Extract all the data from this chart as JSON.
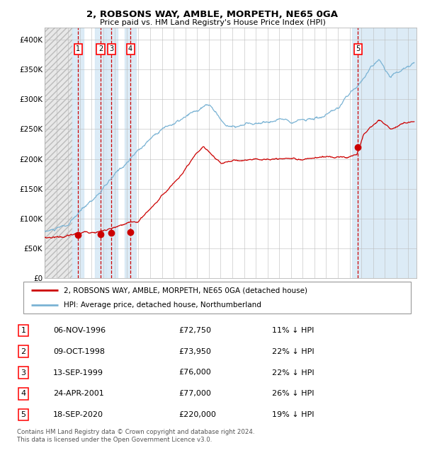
{
  "title": "2, ROBSONS WAY, AMBLE, MORPETH, NE65 0GA",
  "subtitle": "Price paid vs. HM Land Registry's House Price Index (HPI)",
  "transactions": [
    {
      "num": 1,
      "date": "06-NOV-1996",
      "price": 72750,
      "year": 1996.85
    },
    {
      "num": 2,
      "date": "09-OCT-1998",
      "price": 73950,
      "year": 1998.77
    },
    {
      "num": 3,
      "date": "13-SEP-1999",
      "price": 76000,
      "year": 1999.7
    },
    {
      "num": 4,
      "date": "24-APR-2001",
      "price": 77000,
      "year": 2001.31
    },
    {
      "num": 5,
      "date": "18-SEP-2020",
      "price": 220000,
      "year": 2020.71
    }
  ],
  "legend_line1": "2, ROBSONS WAY, AMBLE, MORPETH, NE65 0GA (detached house)",
  "legend_line2": "HPI: Average price, detached house, Northumberland",
  "table_rows": [
    {
      "num": 1,
      "date": "06-NOV-1996",
      "price": "£72,750",
      "pct": "11% ↓ HPI"
    },
    {
      "num": 2,
      "date": "09-OCT-1998",
      "price": "£73,950",
      "pct": "22% ↓ HPI"
    },
    {
      "num": 3,
      "date": "13-SEP-1999",
      "price": "£76,000",
      "pct": "22% ↓ HPI"
    },
    {
      "num": 4,
      "date": "24-APR-2001",
      "price": "£77,000",
      "pct": "26% ↓ HPI"
    },
    {
      "num": 5,
      "date": "18-SEP-2020",
      "price": "£220,000",
      "pct": "19% ↓ HPI"
    }
  ],
  "footnote1": "Contains HM Land Registry data © Crown copyright and database right 2024.",
  "footnote2": "This data is licensed under the Open Government Licence v3.0.",
  "hpi_color": "#7ab3d4",
  "price_color": "#cc0000",
  "dot_color": "#cc0000",
  "bg_highlight_color": "#d6e8f5",
  "hatch_color": "#c8c8c8",
  "grid_color": "#bbbbbb",
  "dashed_color": "#cc0000",
  "ylim": [
    0,
    420000
  ],
  "xlim_start": 1994.0,
  "xlim_end": 2025.7,
  "yticks": [
    0,
    50000,
    100000,
    150000,
    200000,
    250000,
    300000,
    350000,
    400000
  ],
  "ytick_labels": [
    "£0",
    "£50K",
    "£100K",
    "£150K",
    "£200K",
    "£250K",
    "£300K",
    "£350K",
    "£400K"
  ],
  "highlight_bands": [
    [
      1996.35,
      1997.35
    ],
    [
      1998.27,
      1999.27
    ],
    [
      1999.2,
      2000.2
    ],
    [
      2000.81,
      2001.81
    ],
    [
      2020.21,
      2025.7
    ]
  ],
  "hatch_region": [
    1994.0,
    1996.35
  ]
}
